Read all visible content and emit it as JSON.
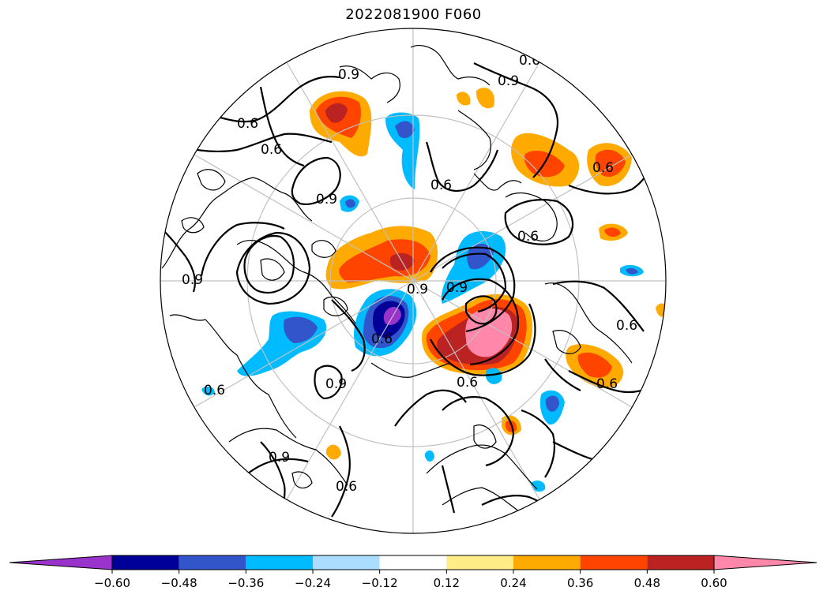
{
  "title": "2022081900 F060",
  "colorbar": {
    "levels": [
      "−0.60",
      "−0.48",
      "−0.36",
      "−0.24",
      "−0.12",
      "0.12",
      "0.24",
      "0.36",
      "0.48",
      "0.60"
    ],
    "colors": [
      "#9933cc",
      "#000099",
      "#3355cc",
      "#00bbff",
      "#aaddff",
      "#ffffff",
      "#ffee88",
      "#ffaa00",
      "#ff4400",
      "#bb2222",
      "#ff88aa"
    ]
  },
  "contour_labels": [
    "0.6",
    "0.9",
    "0.6",
    "0.6",
    "0.9",
    "0.6",
    "0.9",
    "0.9",
    "0.6",
    "0.6",
    "0.9",
    "0.9",
    "0.6",
    "0.6",
    "0.6",
    "0.6",
    "0.9",
    "0.6",
    "0.9",
    "0.6"
  ]
}
